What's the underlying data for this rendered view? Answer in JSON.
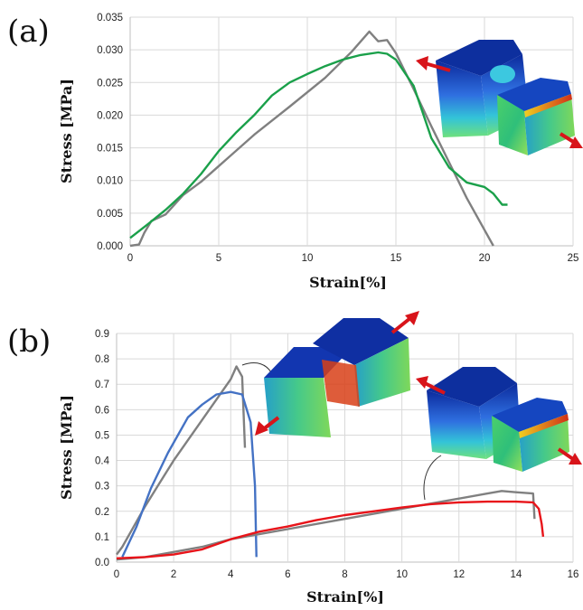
{
  "panels": [
    {
      "label": "(a)"
    },
    {
      "label": "(b)"
    }
  ],
  "chart_data": [
    {
      "type": "line",
      "xlabel": "Strain[%]",
      "ylabel": "Stress [MPa]",
      "xlim": [
        0,
        25
      ],
      "ylim": [
        0,
        0.035
      ],
      "x_ticks": [
        "0",
        "5",
        "10",
        "15",
        "20",
        "25"
      ],
      "y_ticks": [
        "0.000",
        "0.005",
        "0.010",
        "0.015",
        "0.020",
        "0.025",
        "0.030",
        "0.035"
      ],
      "grid": true,
      "series": [
        {
          "color": "#808080",
          "points": [
            [
              0,
              0
            ],
            [
              0.5,
              0.0002
            ],
            [
              0.8,
              0.002
            ],
            [
              1.2,
              0.0038
            ],
            [
              2.0,
              0.0048
            ],
            [
              3.0,
              0.0078
            ],
            [
              4.0,
              0.0098
            ],
            [
              5.0,
              0.0122
            ],
            [
              7.0,
              0.017
            ],
            [
              9.0,
              0.0213
            ],
            [
              11.0,
              0.0257
            ],
            [
              12.5,
              0.0297
            ],
            [
              13.5,
              0.0328
            ],
            [
              14.0,
              0.0313
            ],
            [
              14.5,
              0.0315
            ],
            [
              15.0,
              0.0295
            ],
            [
              16.0,
              0.024
            ],
            [
              17.0,
              0.0183
            ],
            [
              18.0,
              0.0128
            ],
            [
              19.0,
              0.0073
            ],
            [
              20.5,
              0.0
            ]
          ]
        },
        {
          "color": "#1aa04a",
          "points": [
            [
              0,
              0.0012
            ],
            [
              1.0,
              0.0033
            ],
            [
              2.0,
              0.0055
            ],
            [
              3.0,
              0.008
            ],
            [
              4.0,
              0.011
            ],
            [
              5.0,
              0.0145
            ],
            [
              6.0,
              0.0174
            ],
            [
              7.0,
              0.02
            ],
            [
              8.0,
              0.023
            ],
            [
              9.0,
              0.025
            ],
            [
              10.0,
              0.0263
            ],
            [
              11.0,
              0.0275
            ],
            [
              12.0,
              0.0285
            ],
            [
              13.0,
              0.0292
            ],
            [
              14.0,
              0.0296
            ],
            [
              14.5,
              0.0294
            ],
            [
              15.0,
              0.0285
            ],
            [
              16.0,
              0.0245
            ],
            [
              17.0,
              0.0165
            ],
            [
              18.0,
              0.012
            ],
            [
              19.0,
              0.0097
            ],
            [
              20.0,
              0.009
            ],
            [
              20.5,
              0.008
            ],
            [
              21.0,
              0.0063
            ],
            [
              21.3,
              0.0063
            ]
          ]
        }
      ]
    },
    {
      "type": "line",
      "xlabel": "Strain[%]",
      "ylabel": "Stress [MPa]",
      "xlim": [
        0,
        16
      ],
      "ylim": [
        0,
        0.9
      ],
      "x_ticks": [
        "0",
        "2",
        "4",
        "6",
        "8",
        "10",
        "12",
        "14",
        "16"
      ],
      "y_ticks": [
        "0.0",
        "0.1",
        "0.2",
        "0.3",
        "0.4",
        "0.5",
        "0.6",
        "0.7",
        "0.8",
        "0.9"
      ],
      "grid": true,
      "series": [
        {
          "color": "#808080",
          "points": [
            [
              0,
              0.03
            ],
            [
              0.2,
              0.06
            ],
            [
              0.5,
              0.12
            ],
            [
              1.0,
              0.22
            ],
            [
              1.5,
              0.31
            ],
            [
              2.0,
              0.4
            ],
            [
              2.5,
              0.48
            ],
            [
              3.0,
              0.56
            ],
            [
              3.5,
              0.64
            ],
            [
              4.0,
              0.72
            ],
            [
              4.2,
              0.77
            ],
            [
              4.4,
              0.73
            ],
            [
              4.5,
              0.45
            ]
          ]
        },
        {
          "color": "#4472c4",
          "points": [
            [
              0.2,
              0.02
            ],
            [
              0.7,
              0.14
            ],
            [
              1.2,
              0.29
            ],
            [
              1.8,
              0.43
            ],
            [
              2.5,
              0.57
            ],
            [
              3.0,
              0.62
            ],
            [
              3.5,
              0.66
            ],
            [
              4.0,
              0.67
            ],
            [
              4.4,
              0.66
            ],
            [
              4.7,
              0.55
            ],
            [
              4.85,
              0.3
            ],
            [
              4.9,
              0.02
            ]
          ]
        },
        {
          "color": "#808080",
          "points": [
            [
              0,
              0.01
            ],
            [
              1,
              0.02
            ],
            [
              2,
              0.04
            ],
            [
              3,
              0.06
            ],
            [
              4,
              0.09
            ],
            [
              5,
              0.11
            ],
            [
              6,
              0.13
            ],
            [
              7,
              0.15
            ],
            [
              8,
              0.17
            ],
            [
              9,
              0.19
            ],
            [
              10,
              0.21
            ],
            [
              11,
              0.23
            ],
            [
              12,
              0.25
            ],
            [
              13,
              0.27
            ],
            [
              13.5,
              0.28
            ],
            [
              14,
              0.275
            ],
            [
              14.6,
              0.27
            ],
            [
              14.65,
              0.17
            ]
          ]
        },
        {
          "color": "#e8141a",
          "points": [
            [
              0,
              0.015
            ],
            [
              1,
              0.02
            ],
            [
              2,
              0.03
            ],
            [
              3,
              0.05
            ],
            [
              4,
              0.09
            ],
            [
              5,
              0.12
            ],
            [
              6,
              0.14
            ],
            [
              7,
              0.165
            ],
            [
              8,
              0.185
            ],
            [
              9,
              0.2
            ],
            [
              10,
              0.215
            ],
            [
              11,
              0.228
            ],
            [
              12,
              0.235
            ],
            [
              13,
              0.238
            ],
            [
              14,
              0.238
            ],
            [
              14.6,
              0.235
            ],
            [
              14.8,
              0.21
            ],
            [
              14.9,
              0.15
            ],
            [
              14.95,
              0.1
            ]
          ]
        }
      ]
    }
  ],
  "insets": {
    "cube_top_color": "#1030a0",
    "cube_mid_color": "#38c070",
    "cube_high_color": "#d03018",
    "arrow_color": "#d8141a"
  }
}
